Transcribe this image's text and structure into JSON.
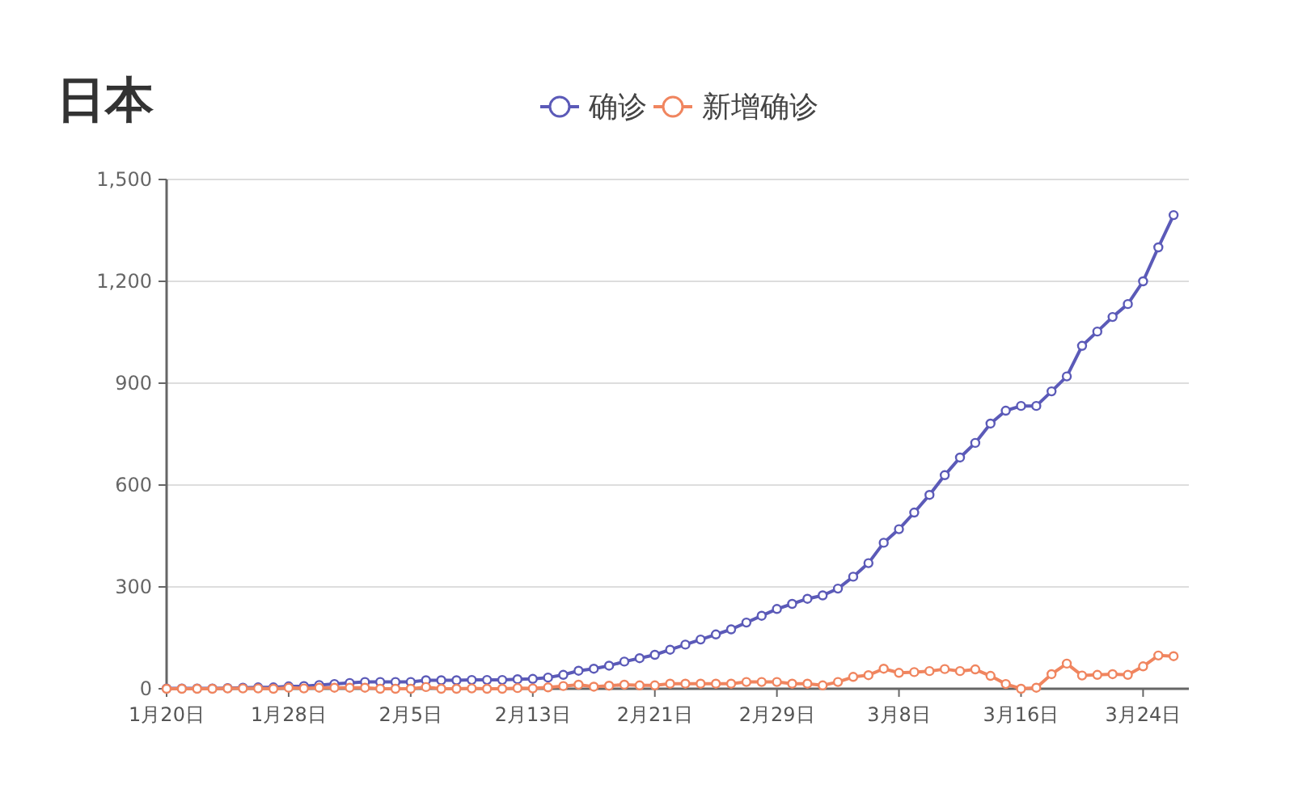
{
  "chart_data": {
    "type": "line",
    "title": "日本",
    "x": [
      "--01-20",
      "--01-21",
      "--01-22",
      "--01-23",
      "--01-24",
      "--01-25",
      "--01-26",
      "--01-27",
      "--01-28",
      "--01-29",
      "--01-30",
      "--01-31",
      "--02-01",
      "--02-02",
      "--02-03",
      "--02-04",
      "--02-05",
      "--02-06",
      "--02-07",
      "--02-08",
      "--02-09",
      "--02-10",
      "--02-11",
      "--02-12",
      "--02-13",
      "--02-14",
      "--02-15",
      "--02-16",
      "--02-17",
      "--02-18",
      "--02-19",
      "--02-20",
      "--02-21",
      "--02-22",
      "--02-23",
      "--02-24",
      "--02-25",
      "--02-26",
      "--02-27",
      "--02-28",
      "--02-29",
      "--03-01",
      "--03-02",
      "--03-03",
      "--03-04",
      "--03-05",
      "--03-06",
      "--03-07",
      "--03-08",
      "--03-09",
      "--03-10",
      "--03-11",
      "--03-12",
      "--03-13",
      "--03-14",
      "--03-15",
      "--03-16",
      "--03-17",
      "--03-18",
      "--03-19",
      "--03-20",
      "--03-21",
      "--03-22",
      "--03-23",
      "--03-24",
      "--03-25",
      "--03-26"
    ],
    "series": [
      {
        "name": "确诊",
        "color": "#5b5ab8",
        "values": [
          1,
          1,
          1,
          1,
          2,
          3,
          4,
          4,
          7,
          8,
          11,
          14,
          17,
          20,
          20,
          20,
          20,
          25,
          25,
          25,
          26,
          26,
          26,
          28,
          29,
          33,
          41,
          53,
          59,
          68,
          80,
          90,
          100,
          115,
          130,
          145,
          160,
          175,
          195,
          215,
          235,
          250,
          265,
          275,
          295,
          330,
          370,
          430,
          470,
          519,
          571,
          629,
          681,
          724,
          781,
          819,
          833,
          833,
          876,
          920,
          1010,
          1052,
          1095,
          1133,
          1200,
          1300,
          1395
        ]
      },
      {
        "name": "新增确诊",
        "color": "#f0855f",
        "values": [
          0,
          0,
          0,
          0,
          1,
          1,
          1,
          0,
          3,
          1,
          3,
          3,
          3,
          3,
          0,
          0,
          0,
          5,
          0,
          0,
          1,
          0,
          0,
          2,
          1,
          4,
          8,
          12,
          6,
          9,
          12,
          10,
          10,
          15,
          15,
          15,
          15,
          15,
          20,
          20,
          20,
          15,
          15,
          10,
          20,
          35,
          40,
          59,
          47,
          49,
          52,
          58,
          52,
          57,
          38,
          14,
          0,
          3,
          43,
          74,
          39,
          41,
          43,
          41,
          66,
          98,
          96
        ]
      }
    ],
    "xlim": [
      "--01-20",
      "--03-27"
    ],
    "xticks": [
      {
        "value": "--01-20",
        "label": "1月20日"
      },
      {
        "value": "--01-28",
        "label": "1月28日"
      },
      {
        "value": "--02-05",
        "label": "2月5日"
      },
      {
        "value": "--02-13",
        "label": "2月13日"
      },
      {
        "value": "--02-21",
        "label": "2月21日"
      },
      {
        "value": "--02-29",
        "label": "2月29日"
      },
      {
        "value": "--03-08",
        "label": "3月8日"
      },
      {
        "value": "--03-16",
        "label": "3月16日"
      },
      {
        "value": "--03-24",
        "label": "3月24日"
      }
    ],
    "ylim": [
      0,
      1500
    ],
    "yticks": [
      0,
      300,
      600,
      900,
      {
        "value": 1200,
        "label": "1,200"
      },
      {
        "value": 1500,
        "label": "1,500"
      }
    ],
    "grid": "y",
    "legend": "top",
    "marker": "circle",
    "line_style": "solid"
  }
}
